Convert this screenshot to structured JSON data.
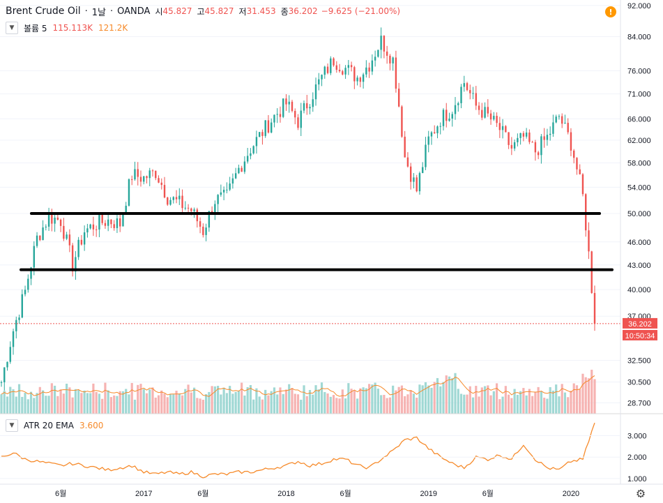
{
  "header": {
    "symbol": "Brent Crude Oil",
    "interval": "1날",
    "source": "OANDA",
    "open_label": "시",
    "open": "45.827",
    "high_label": "고",
    "high": "45.827",
    "low_label": "저",
    "low": "31.453",
    "close_label": "종",
    "close": "36.202",
    "change": "−9.625 (−21.00%)"
  },
  "volume_legend": {
    "label": "볼륨 5",
    "value": "115.113K",
    "ma": "121.2K"
  },
  "atr_legend": {
    "label": "ATR 20 EMA",
    "value": "3.600"
  },
  "price_badge": "36.202",
  "countdown_badge": "10:50:34",
  "icons": {
    "alert": "alert-icon",
    "collapse": "chevron-down-icon",
    "settings": "gear-icon"
  },
  "colors": {
    "up": "#26a69a",
    "down": "#ef5350",
    "atr": "#f68a2a",
    "support": "#000000"
  },
  "chart_data": {
    "type": "candlestick",
    "series": [
      {
        "name": "Brent Crude Oil",
        "x": [
          "2016-01",
          "2016-02",
          "2016-03",
          "2016-04",
          "2016-05",
          "2016-06",
          "2016-07",
          "2016-08",
          "2016-09",
          "2016-10",
          "2016-11",
          "2016-12",
          "2017-01",
          "2017-02",
          "2017-03",
          "2017-04",
          "2017-05",
          "2017-06",
          "2017-07",
          "2017-08",
          "2017-09",
          "2017-10",
          "2017-11",
          "2017-12",
          "2018-01",
          "2018-02",
          "2018-03",
          "2018-04",
          "2018-05",
          "2018-06",
          "2018-07",
          "2018-08",
          "2018-09",
          "2018-10",
          "2018-11",
          "2018-12",
          "2019-01",
          "2019-02",
          "2019-03",
          "2019-04",
          "2019-05",
          "2019-06",
          "2019-07",
          "2019-08",
          "2019-09",
          "2019-10",
          "2019-11",
          "2019-12",
          "2020-01",
          "2020-02",
          "2020-03"
        ],
        "close": [
          30.5,
          35.5,
          39.8,
          46.5,
          49.5,
          49.0,
          43.0,
          47.5,
          48.5,
          49.0,
          48.5,
          56.0,
          55.5,
          56.5,
          52.5,
          51.5,
          50.5,
          47.5,
          52.0,
          52.5,
          57.0,
          60.5,
          63.5,
          66.5,
          69.0,
          65.5,
          70.0,
          74.5,
          78.5,
          76.5,
          74.5,
          77.5,
          83.0,
          78.5,
          59.0,
          53.5,
          62.0,
          66.0,
          68.0,
          73.5,
          68.5,
          66.5,
          64.0,
          60.5,
          62.5,
          60.0,
          62.5,
          66.5,
          61.5,
          52.5,
          36.2
        ]
      }
    ],
    "volume": {
      "name": "볼륨 5",
      "ma_period": 5
    },
    "atr": {
      "name": "ATR 20 EMA",
      "values": [
        2.0,
        2.2,
        1.9,
        1.8,
        1.7,
        1.6,
        1.7,
        1.6,
        1.5,
        1.4,
        1.5,
        1.6,
        1.3,
        1.2,
        1.3,
        1.2,
        1.3,
        1.1,
        1.2,
        1.2,
        1.3,
        1.3,
        1.4,
        1.5,
        1.6,
        1.8,
        1.6,
        1.7,
        1.9,
        1.9,
        1.6,
        1.5,
        1.9,
        2.3,
        2.8,
        2.9,
        2.4,
        2.0,
        1.7,
        1.5,
        2.0,
        1.9,
        2.1,
        1.9,
        2.6,
        1.9,
        1.5,
        1.4,
        1.8,
        1.9,
        3.6
      ],
      "ylim": [
        0.8,
        3.8
      ],
      "ticks": [
        "3.000",
        "2.000",
        "1.000"
      ]
    },
    "support_levels": [
      50.0,
      42.4
    ],
    "x_ticks": [
      "6월",
      "2017",
      "6월",
      "2018",
      "6월",
      "2019",
      "6월",
      "2020"
    ],
    "y_ticks": [
      "92.000",
      "84.000",
      "76.000",
      "71.000",
      "66.000",
      "62.000",
      "58.000",
      "54.000",
      "50.000",
      "46.000",
      "43.000",
      "40.000",
      "37.000",
      "32.500",
      "30.500",
      "28.700"
    ],
    "ylim": [
      27.8,
      93.5
    ],
    "ylog": true,
    "grid": true
  }
}
